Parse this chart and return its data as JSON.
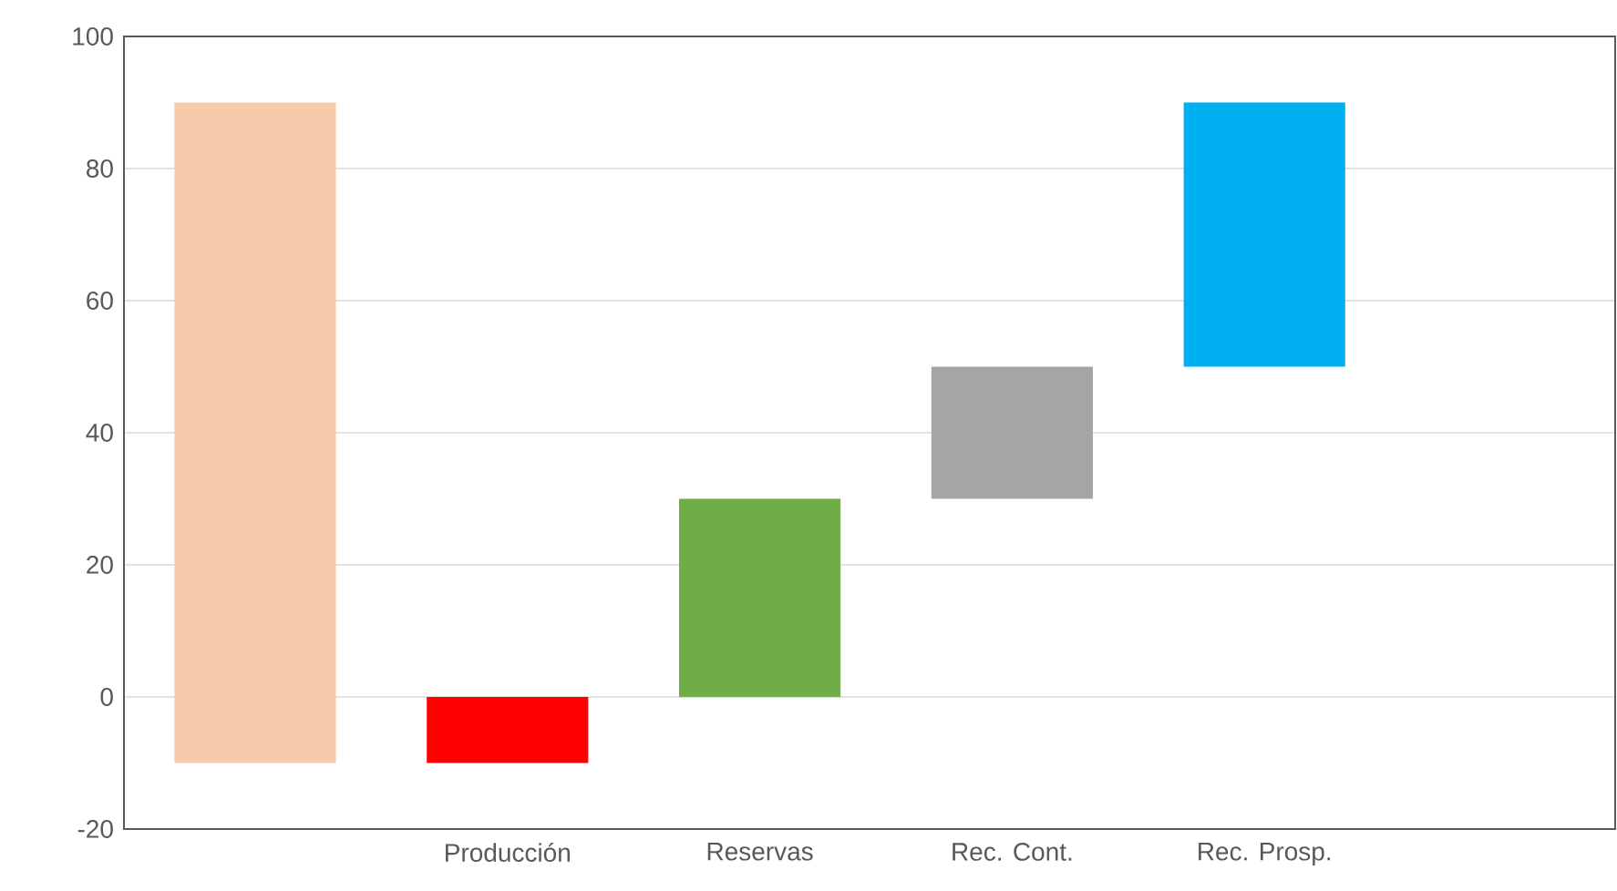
{
  "chart_data": {
    "type": "bar",
    "categories": [
      null,
      "Producción",
      "Reservas",
      "Rec. Cont.",
      "Rec. Prosp."
    ],
    "values": [
      100,
      -10,
      30,
      20,
      40
    ],
    "base": [
      -10,
      0,
      0,
      30,
      50
    ],
    "colors": [
      "#f6cbac",
      "#ff0000",
      "#70ad47",
      "#a5a5a5",
      "#00b0f0"
    ],
    "ylim": [
      -20,
      100
    ],
    "yticks": [
      -20,
      0,
      20,
      40,
      60,
      80,
      100
    ],
    "grid": "y"
  }
}
